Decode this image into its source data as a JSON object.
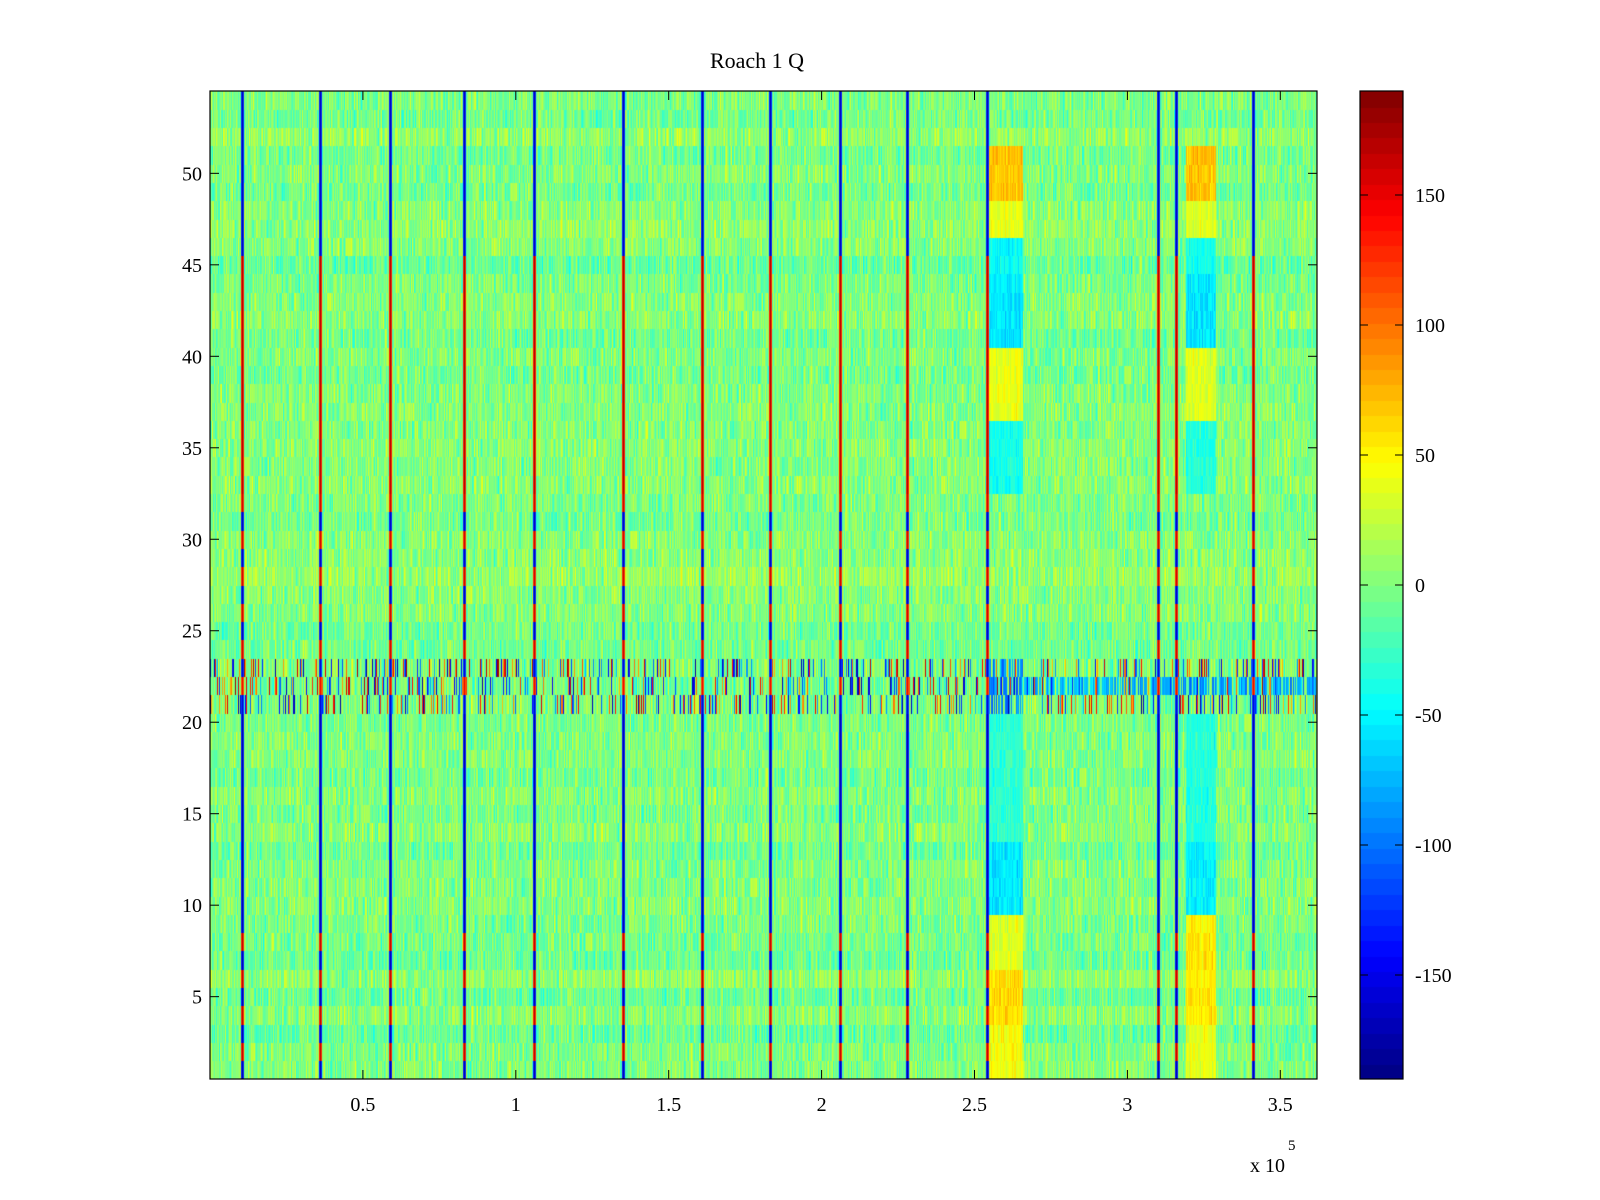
{
  "chart_data": {
    "type": "heatmap",
    "title": "Roach 1 Q",
    "xlabel": "",
    "ylabel": "",
    "xlim": [
      0,
      362000
    ],
    "ylim": [
      0.5,
      54.5
    ],
    "x_ticks": [
      50000,
      100000,
      150000,
      200000,
      250000,
      300000,
      350000
    ],
    "x_tick_labels": [
      "0.5",
      "1",
      "1.5",
      "2",
      "2.5",
      "3",
      "3.5"
    ],
    "x_multiplier": "x 10",
    "x_multiplier_exponent": "5",
    "y_ticks": [
      5,
      10,
      15,
      20,
      25,
      30,
      35,
      40,
      45,
      50
    ],
    "y_tick_labels": [
      "5",
      "10",
      "15",
      "20",
      "25",
      "30",
      "35",
      "40",
      "45",
      "50"
    ],
    "rows": 54,
    "colorbar": {
      "colormap": "jet",
      "clim": [
        -190,
        190
      ],
      "ticks": [
        -150,
        -100,
        -50,
        0,
        50,
        100,
        150
      ],
      "tick_labels": [
        "-150",
        "-100",
        "-50",
        "0",
        "50",
        "100",
        "150"
      ]
    },
    "background_level": 0,
    "noise_amplitude": 22,
    "spike_columns_x": [
      10500,
      36000,
      59000,
      83000,
      106000,
      135000,
      161000,
      183000,
      206000,
      228000,
      254000,
      310000,
      316000,
      341000
    ],
    "spike_pattern": {
      "rows_1_to_8": "alternating blue/red",
      "rows_9_to_20": "blue",
      "rows_21_to_23": "mixed",
      "rows_24_to_32": "alternating blue/red",
      "rows_33_to_45": "dark red",
      "rows_46_to_54": "blue"
    },
    "burst_band_rows": [
      21,
      23
    ],
    "dark_bands": [
      {
        "row_range": [
          20.5,
          23.5
        ],
        "x_range": [
          254000,
          266000
        ],
        "level": -90
      },
      {
        "row_range": [
          21.5,
          22.5
        ],
        "x_range": [
          266000,
          300000
        ],
        "level": -70
      },
      {
        "row_range": [
          21.5,
          22.5
        ],
        "x_range": [
          300000,
          362000
        ],
        "level": -80
      }
    ],
    "patch_columns": [
      {
        "x_range": [
          254000,
          266000
        ],
        "patches": [
          {
            "rows": [
              1,
              3
            ],
            "level": 45
          },
          {
            "rows": [
              4,
              6
            ],
            "level": 60
          },
          {
            "rows": [
              7,
              9
            ],
            "level": 35
          },
          {
            "rows": [
              10,
              13
            ],
            "level": -55
          },
          {
            "rows": [
              14,
              20
            ],
            "level": -30
          },
          {
            "rows": [
              33,
              36
            ],
            "level": -40
          },
          {
            "rows": [
              37,
              40
            ],
            "level": 40
          },
          {
            "rows": [
              41,
              44
            ],
            "level": -55
          },
          {
            "rows": [
              45,
              46
            ],
            "level": -45
          },
          {
            "rows": [
              47,
              48
            ],
            "level": 40
          },
          {
            "rows": [
              49,
              51
            ],
            "level": 70
          }
        ]
      },
      {
        "x_range": [
          319000,
          329000
        ],
        "patches": [
          {
            "rows": [
              1,
              3
            ],
            "level": 40
          },
          {
            "rows": [
              4,
              6
            ],
            "level": 55
          },
          {
            "rows": [
              7,
              9
            ],
            "level": 55
          },
          {
            "rows": [
              10,
              13
            ],
            "level": -50
          },
          {
            "rows": [
              14,
              20
            ],
            "level": -35
          },
          {
            "rows": [
              33,
              36
            ],
            "level": -35
          },
          {
            "rows": [
              37,
              40
            ],
            "level": 35
          },
          {
            "rows": [
              41,
              44
            ],
            "level": -55
          },
          {
            "rows": [
              45,
              46
            ],
            "level": -40
          },
          {
            "rows": [
              47,
              48
            ],
            "level": 35
          },
          {
            "rows": [
              49,
              51
            ],
            "level": 70
          }
        ]
      }
    ]
  }
}
